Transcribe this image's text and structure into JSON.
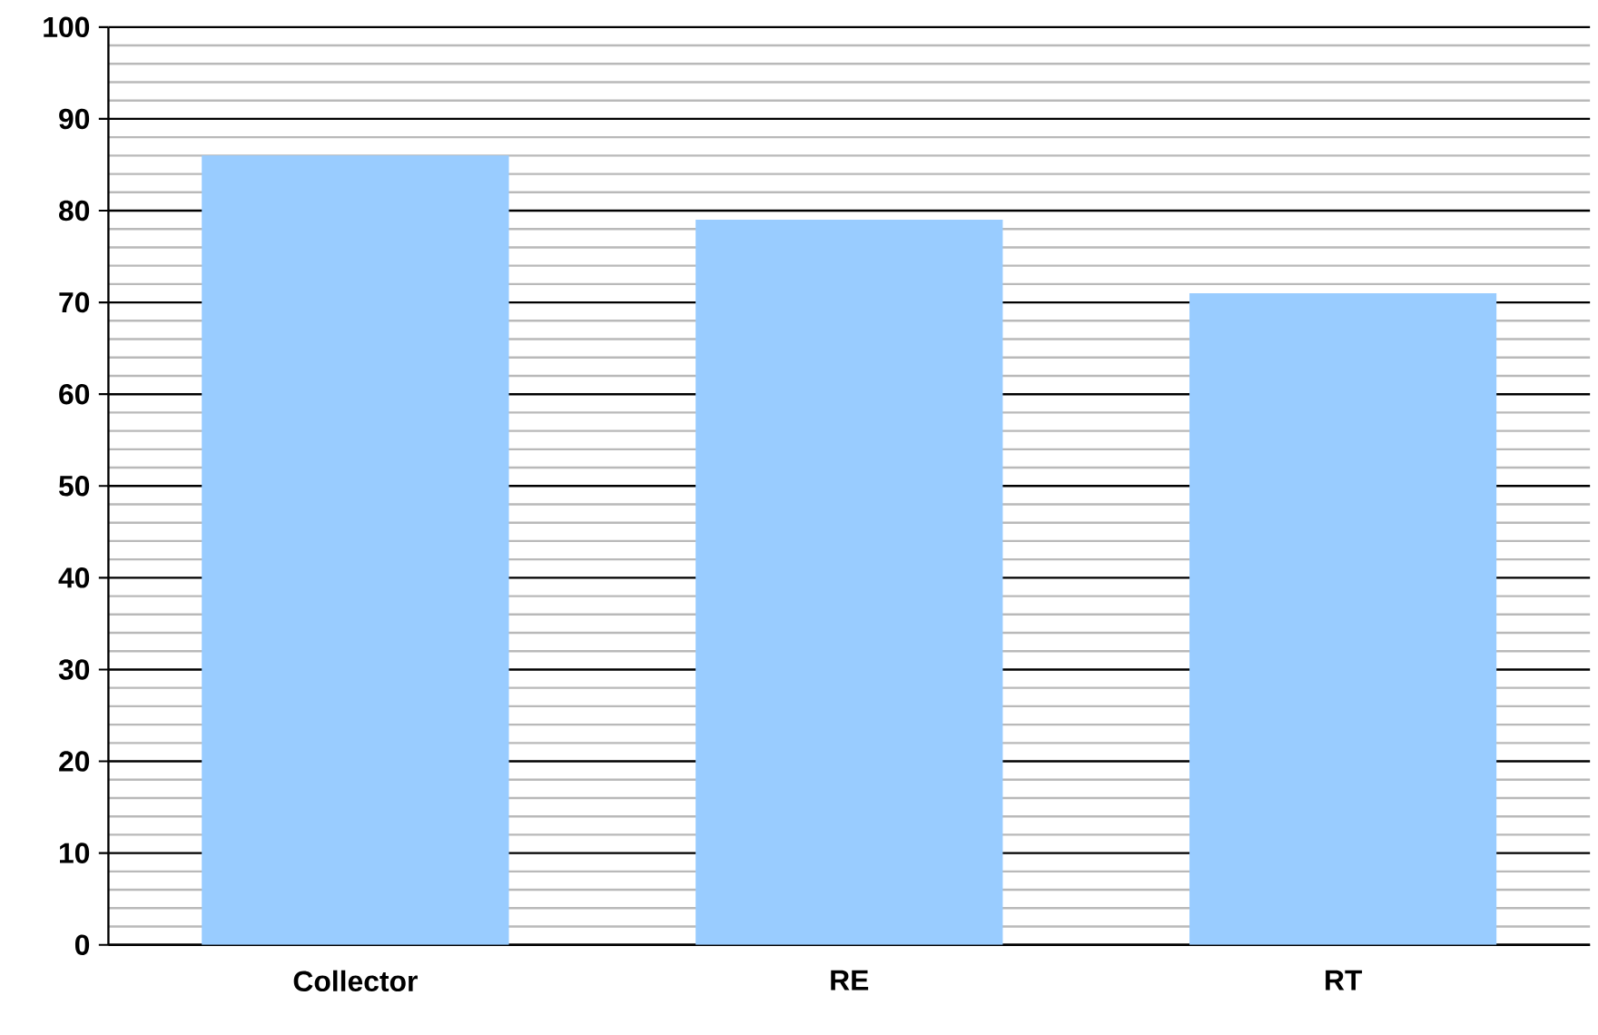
{
  "chart_data": {
    "type": "bar",
    "categories": [
      "Collector",
      "RE",
      "RT"
    ],
    "values": [
      86,
      79,
      71
    ],
    "color": "#99ccff",
    "ylim": [
      0,
      100
    ],
    "yticks": [
      0,
      10,
      20,
      30,
      40,
      50,
      60,
      70,
      80,
      90,
      100
    ],
    "grid": "y"
  }
}
